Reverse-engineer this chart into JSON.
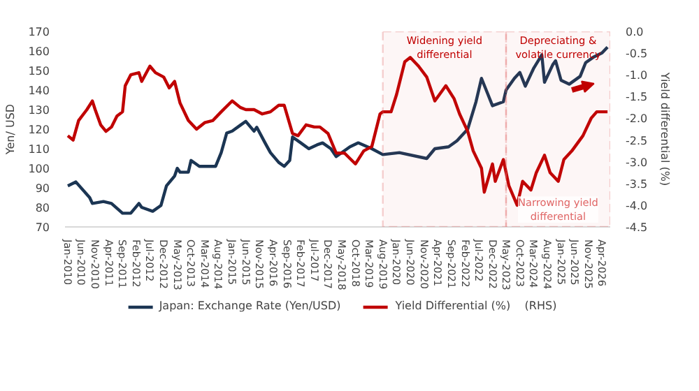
{
  "chart_data": {
    "type": "line",
    "ylabel": "Yen/ USD",
    "y2label": "Yield differential (%)",
    "xlim": [
      "2009-12",
      "2026-07"
    ],
    "xticks": [
      {
        "value": "2010-01",
        "label": "Jan-2010"
      },
      {
        "value": "2010-06",
        "label": "Jun-2010"
      },
      {
        "value": "2010-11",
        "label": "Nov-2010"
      },
      {
        "value": "2011-04",
        "label": "Apr-2011"
      },
      {
        "value": "2011-09",
        "label": "Sep-2011"
      },
      {
        "value": "2012-02",
        "label": "Feb-2012"
      },
      {
        "value": "2012-07",
        "label": "Jul-2012"
      },
      {
        "value": "2012-12",
        "label": "Dec-2012"
      },
      {
        "value": "2013-05",
        "label": "May-2013"
      },
      {
        "value": "2013-10",
        "label": "Oct-2013"
      },
      {
        "value": "2014-03",
        "label": "Mar-2014"
      },
      {
        "value": "2014-08",
        "label": "Aug-2014"
      },
      {
        "value": "2015-01",
        "label": "Jan-2015"
      },
      {
        "value": "2015-06",
        "label": "Jun-2015"
      },
      {
        "value": "2015-11",
        "label": "Nov-2015"
      },
      {
        "value": "2016-04",
        "label": "Apr-2016"
      },
      {
        "value": "2016-09",
        "label": "Sep-2016"
      },
      {
        "value": "2017-02",
        "label": "Feb-2017"
      },
      {
        "value": "2017-07",
        "label": "Jul-2017"
      },
      {
        "value": "2017-12",
        "label": "Dec-2017"
      },
      {
        "value": "2018-05",
        "label": "May-2018"
      },
      {
        "value": "2018-10",
        "label": "Oct-2018"
      },
      {
        "value": "2019-03",
        "label": "Mar-2019"
      },
      {
        "value": "2019-08",
        "label": "Aug-2019"
      },
      {
        "value": "2020-01",
        "label": "Jan-2020"
      },
      {
        "value": "2020-06",
        "label": "Jun-2020"
      },
      {
        "value": "2020-11",
        "label": "Nov-2020"
      },
      {
        "value": "2021-04",
        "label": "Apr-2021"
      },
      {
        "value": "2021-09",
        "label": "Sep-2021"
      },
      {
        "value": "2022-02",
        "label": "Feb-2022"
      },
      {
        "value": "2022-07",
        "label": "Jul-2022"
      },
      {
        "value": "2022-12",
        "label": "Dec-2022"
      },
      {
        "value": "2023-05",
        "label": "May-2023"
      },
      {
        "value": "2023-10",
        "label": "Oct-2023"
      },
      {
        "value": "2024-03",
        "label": "Mar-2024"
      },
      {
        "value": "2024-08",
        "label": "Aug-2024"
      },
      {
        "value": "2025-01",
        "label": "Jan-2025"
      },
      {
        "value": "2025-06",
        "label": "Jun-2025"
      },
      {
        "value": "2025-11",
        "label": "Nov-2025"
      },
      {
        "value": "2026-04",
        "label": "Apr-2026"
      }
    ],
    "ylim": [
      70,
      170
    ],
    "yticks": [
      70,
      80,
      90,
      100,
      110,
      120,
      130,
      140,
      150,
      160,
      170
    ],
    "y2lim": [
      -4.5,
      0.0
    ],
    "y2ticks": [
      {
        "value": -4.5,
        "label": "-4.5"
      },
      {
        "value": -4.0,
        "label": "-4.0"
      },
      {
        "value": -3.5,
        "label": "-3.5"
      },
      {
        "value": -3.0,
        "label": "-3.0"
      },
      {
        "value": -2.5,
        "label": "-2.5"
      },
      {
        "value": -2.0,
        "label": "-2.0"
      },
      {
        "value": -1.5,
        "label": "-1.5"
      },
      {
        "value": -1.0,
        "label": "-1.0"
      },
      {
        "value": -0.5,
        "label": "-0.5"
      },
      {
        "value": 0.0,
        "label": "0.0"
      }
    ],
    "grid": false,
    "legend": "bottom",
    "series": [
      {
        "name": "Japan: Exchange Rate (Yen/USD)",
        "color": "#1b3553",
        "x": [
          "2010-01",
          "2010-04",
          "2010-09",
          "2010-10",
          "2011-02",
          "2011-05",
          "2011-09",
          "2011-12",
          "2012-03",
          "2012-04",
          "2012-08",
          "2012-11",
          "2013-01",
          "2013-04",
          "2013-05",
          "2013-06",
          "2013-09",
          "2013-10",
          "2014-01",
          "2014-07",
          "2014-09",
          "2014-11",
          "2015-01",
          "2015-04",
          "2015-06",
          "2015-09",
          "2015-10",
          "2016-01",
          "2016-03",
          "2016-06",
          "2016-08",
          "2016-10",
          "2016-11",
          "2017-02",
          "2017-05",
          "2017-08",
          "2017-10",
          "2018-01",
          "2018-03",
          "2018-08",
          "2018-11",
          "2019-04",
          "2019-08",
          "2020-02",
          "2020-12",
          "2021-03",
          "2021-08",
          "2021-11",
          "2022-03",
          "2022-06",
          "2022-08",
          "2022-10",
          "2022-12",
          "2023-04",
          "2023-05",
          "2023-08",
          "2023-10",
          "2023-12",
          "2024-03",
          "2024-06",
          "2024-07",
          "2024-10",
          "2024-11",
          "2025-01",
          "2025-04",
          "2025-08",
          "2025-10",
          "2026-01",
          "2026-04",
          "2026-06"
        ],
        "values": [
          91,
          93,
          85,
          82,
          83,
          82,
          77,
          77,
          82,
          80,
          78,
          81,
          91,
          96,
          100,
          98,
          98,
          104,
          101,
          101,
          108,
          118,
          119,
          122,
          124,
          119,
          121,
          113,
          108,
          103,
          101,
          104,
          116,
          113,
          110,
          112,
          113,
          110,
          106,
          111,
          113,
          110,
          107,
          108,
          105,
          110,
          111,
          114,
          120,
          134,
          146,
          139,
          132,
          134,
          140,
          146,
          149,
          142,
          151,
          158,
          144,
          153,
          155,
          145,
          143,
          147,
          154,
          157,
          159,
          162
        ]
      },
      {
        "name": "Yield Differential (%)    (RHS)",
        "color": "#c00000",
        "axis": "y2",
        "x": [
          "2010-01",
          "2010-03",
          "2010-05",
          "2010-08",
          "2010-10",
          "2010-11",
          "2011-01",
          "2011-03",
          "2011-05",
          "2011-07",
          "2011-09",
          "2011-10",
          "2011-12",
          "2012-03",
          "2012-04",
          "2012-07",
          "2012-09",
          "2012-12",
          "2013-02",
          "2013-04",
          "2013-06",
          "2013-09",
          "2013-12",
          "2014-03",
          "2014-06",
          "2014-09",
          "2015-01",
          "2015-04",
          "2015-06",
          "2015-09",
          "2015-12",
          "2016-03",
          "2016-06",
          "2016-08",
          "2016-11",
          "2017-01",
          "2017-04",
          "2017-07",
          "2017-09",
          "2017-12",
          "2018-03",
          "2018-06",
          "2018-10",
          "2019-01",
          "2019-04",
          "2019-07",
          "2019-08",
          "2019-11",
          "2020-01",
          "2020-04",
          "2020-06",
          "2020-09",
          "2020-12",
          "2021-03",
          "2021-07",
          "2021-10",
          "2021-12",
          "2022-03",
          "2022-05",
          "2022-08",
          "2022-09",
          "2022-12",
          "2023-01",
          "2023-04",
          "2023-06",
          "2023-09",
          "2023-11",
          "2024-02",
          "2024-04",
          "2024-07",
          "2024-09",
          "2024-12",
          "2025-02",
          "2025-05",
          "2025-09",
          "2025-12",
          "2026-02",
          "2026-06"
        ],
        "values": [
          -2.4,
          -2.5,
          -2.05,
          -1.8,
          -1.6,
          -1.8,
          -2.15,
          -2.3,
          -2.2,
          -1.95,
          -1.85,
          -1.25,
          -1.0,
          -0.95,
          -1.15,
          -0.8,
          -0.95,
          -1.05,
          -1.3,
          -1.15,
          -1.65,
          -2.05,
          -2.25,
          -2.1,
          -2.05,
          -1.85,
          -1.6,
          -1.75,
          -1.8,
          -1.8,
          -1.9,
          -1.85,
          -1.7,
          -1.7,
          -2.35,
          -2.4,
          -2.15,
          -2.2,
          -2.2,
          -2.35,
          -2.8,
          -2.8,
          -3.05,
          -2.75,
          -2.65,
          -1.9,
          -1.85,
          -1.85,
          -1.45,
          -0.7,
          -0.6,
          -0.8,
          -1.05,
          -1.6,
          -1.25,
          -1.55,
          -1.9,
          -2.3,
          -2.75,
          -3.15,
          -3.7,
          -3.05,
          -3.45,
          -2.95,
          -3.55,
          -4.0,
          -3.45,
          -3.65,
          -3.25,
          -2.85,
          -3.25,
          -3.45,
          -2.95,
          -2.75,
          -2.4,
          -2.0,
          -1.85,
          -1.85
        ]
      }
    ],
    "bands": [
      {
        "axis": "x",
        "from": "2019-08",
        "to": "2023-05",
        "label": "Widening yield differential",
        "color": "#e06666"
      },
      {
        "axis": "x",
        "from": "2023-05",
        "to": "2026-07",
        "label": "Depreciating & volatile currency",
        "color": "#e06666"
      }
    ],
    "annotations": [
      "Narrowing yield differential"
    ]
  }
}
